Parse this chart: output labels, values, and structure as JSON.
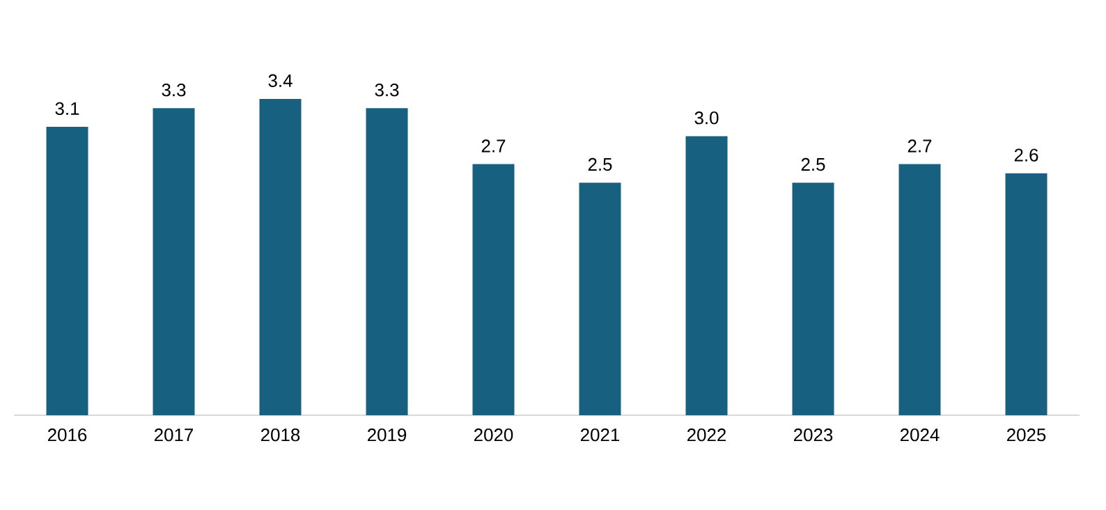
{
  "chart_data": {
    "type": "bar",
    "categories": [
      "2016",
      "2017",
      "2018",
      "2019",
      "2020",
      "2021",
      "2022",
      "2023",
      "2024",
      "2025"
    ],
    "values": [
      3.1,
      3.3,
      3.4,
      3.3,
      2.7,
      2.5,
      3.0,
      2.5,
      2.7,
      2.6
    ],
    "value_labels": [
      "3.1",
      "3.3",
      "3.4",
      "3.3",
      "2.7",
      "2.5",
      "3.0",
      "2.5",
      "2.7",
      "2.6"
    ],
    "color": "#17607f"
  }
}
